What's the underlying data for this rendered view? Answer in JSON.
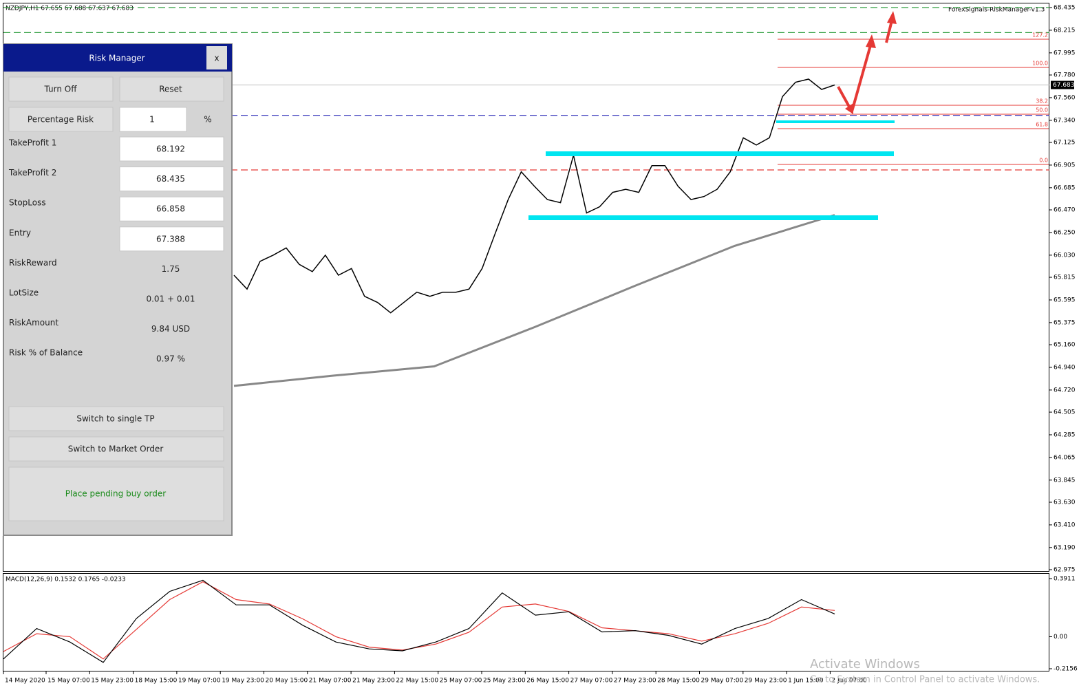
{
  "header": {
    "symbol_info": "NZDJPY,H1  67.655 67.688 67.637 67.683",
    "indicator": "ForexSignals-RiskManager-v1.3"
  },
  "price_chart": {
    "ylim": [
      62.975,
      68.435
    ],
    "yticks": [
      68.435,
      68.215,
      67.995,
      {
        "value": 67.78,
        "label": "67.780"
      },
      {
        "value": 67.56,
        "label": "67.560"
      },
      {
        "value": 67.34,
        "label": "67.340"
      },
      67.125,
      66.905,
      66.685,
      {
        "value": 66.47,
        "label": "66.470"
      },
      {
        "value": 66.25,
        "label": "66.250"
      },
      {
        "value": 66.03,
        "label": "66.030"
      },
      65.815,
      65.595,
      65.375,
      {
        "value": 65.16,
        "label": "65.160"
      },
      {
        "value": 64.94,
        "label": "64.940"
      },
      {
        "value": 64.72,
        "label": "64.720"
      },
      64.505,
      64.285,
      64.065,
      63.845,
      {
        "value": 63.63,
        "label": "63.630"
      },
      {
        "value": 63.41,
        "label": "63.410"
      },
      {
        "value": 63.19,
        "label": "63.190"
      },
      62.975
    ],
    "current_price": 67.683,
    "close": [
      65.835,
      65.7,
      65.97,
      66.03,
      66.1,
      65.94,
      65.87,
      66.03,
      65.835,
      65.9,
      65.63,
      65.57,
      65.47,
      65.57,
      65.67,
      65.63,
      65.67,
      65.67,
      65.7,
      65.9,
      66.24,
      66.57,
      66.84,
      66.7,
      66.57,
      66.54,
      67.0,
      66.44,
      66.5,
      66.64,
      66.67,
      66.64,
      66.9,
      66.9,
      66.7,
      66.57,
      66.6,
      66.67,
      66.84,
      67.17,
      67.1,
      67.17,
      67.57,
      67.71,
      67.74,
      67.64,
      67.683
    ],
    "ma200": [
      64.76,
      64.86,
      64.95,
      65.33,
      65.73,
      66.12,
      66.42
    ],
    "fib_labels": [
      "127.2",
      "100.0",
      "38.2",
      "50.0",
      "61.8",
      "0.0"
    ]
  },
  "macd": {
    "label": "MACD(12,26,9) 0.1532 0.1765 -0.0233",
    "ylim": [
      -0.2156,
      0.3911
    ],
    "yticks": [
      0.3911,
      {
        "value": 0,
        "label": "0.00"
      },
      -0.2156
    ],
    "macd": [
      -0.15,
      0.055,
      -0.036,
      -0.173,
      0.123,
      0.305,
      0.38,
      0.214,
      0.214,
      0.077,
      -0.036,
      -0.082,
      -0.095,
      -0.036,
      0.055,
      0.295,
      0.145,
      0.168,
      0.032,
      0.041,
      0.009,
      -0.05,
      0.055,
      0.123,
      0.25,
      0.1532
    ],
    "signal": [
      -0.1,
      0.02,
      0.0,
      -0.15,
      0.05,
      0.25,
      0.37,
      0.25,
      0.22,
      0.12,
      0.0,
      -0.07,
      -0.09,
      -0.05,
      0.03,
      0.2,
      0.22,
      0.17,
      0.06,
      0.04,
      0.02,
      -0.03,
      0.02,
      0.09,
      0.2,
      0.1765
    ]
  },
  "time_axis": [
    "14 May 2020",
    "15 May 07:00",
    "15 May 23:00",
    "18 May 15:00",
    "19 May 07:00",
    "19 May 23:00",
    "20 May 15:00",
    "21 May 07:00",
    "21 May 23:00",
    "22 May 15:00",
    "25 May 07:00",
    "25 May 23:00",
    "26 May 15:00",
    "27 May 07:00",
    "27 May 23:00",
    "28 May 15:00",
    "29 May 07:00",
    "29 May 23:00",
    "1 Jun 15:00",
    "2 Jun 07:00"
  ],
  "panel": {
    "title": "Risk Manager",
    "close": "x",
    "buttons": [
      "Turn Off",
      "Reset"
    ],
    "risk_mode": "Percentage Risk",
    "risk_input": "1",
    "risk_unit": "%",
    "fields": [
      {
        "label": "TakeProfit 1",
        "value": "68.192"
      },
      {
        "label": "TakeProfit 2",
        "value": "68.435"
      },
      {
        "label": "StopLoss",
        "value": "66.858"
      },
      {
        "label": "Entry",
        "value": "67.388"
      },
      {
        "label": "RiskReward",
        "value": "1.75"
      },
      {
        "label": "LotSize",
        "value": "0.01 + 0.01"
      },
      {
        "label": "RiskAmount",
        "value": "9.84 USD"
      },
      {
        "label": "Risk % of Balance",
        "value": "0.97 %"
      }
    ],
    "actions": [
      "Switch to single TP",
      "Switch to Market Order"
    ],
    "place_order": "Place pending buy order"
  },
  "watermark": {
    "title": "Activate Windows",
    "text": "Go to System in Control Panel to activate Windows."
  }
}
